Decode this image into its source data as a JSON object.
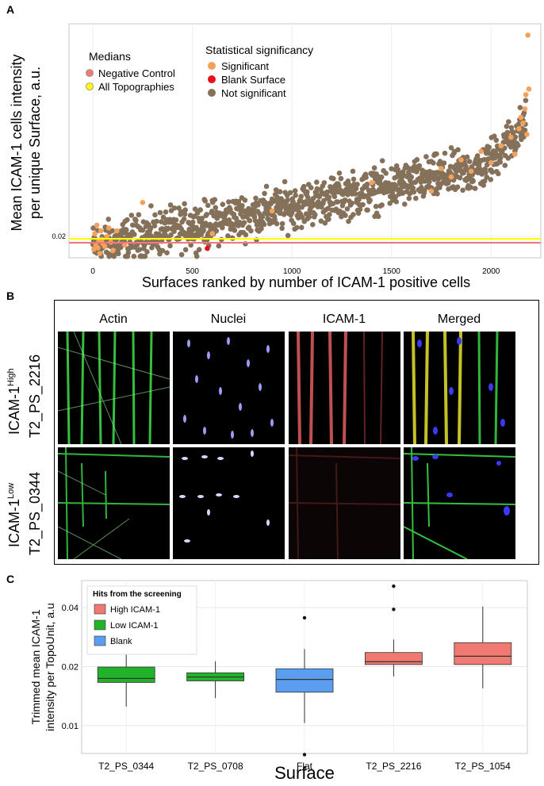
{
  "panel_a": {
    "letter": "A",
    "chart_data": {
      "type": "scatter",
      "title": "",
      "xlabel": "Surfaces ranked by number of ICAM-1 positive cells",
      "ylabel_line1": "Mean ICAM-1 cells intensity",
      "ylabel_line2": "per unique Surface, a.u.",
      "xlim": [
        -120,
        2250
      ],
      "ylim": [
        0.0125,
        0.095
      ],
      "x_ticks": [
        0,
        500,
        1000,
        1500,
        2000
      ],
      "x_tick_labels": [
        "0",
        "500",
        "1000",
        "1500",
        "2000"
      ],
      "y_ticks": [
        0.02
      ],
      "y_tick_labels": [
        "0.02"
      ],
      "grid": true,
      "legend_medians": {
        "title": "Medians",
        "entries": [
          {
            "label": "Negative Control",
            "color": "#f07a7a"
          },
          {
            "label": "All Topographies",
            "color": "#ffff00"
          }
        ]
      },
      "legend_significance": {
        "title": "Statistical significancy",
        "entries": [
          {
            "label": "Significant",
            "color": "#f4a15a"
          },
          {
            "label": "Blank Surface",
            "color": "#e8111a"
          },
          {
            "label": "Not significant",
            "color": "#85705a"
          }
        ]
      },
      "medians": [
        {
          "name": "Negative Control",
          "value": 0.0178,
          "color": "#f07a7a"
        },
        {
          "name": "All Topographies",
          "value": 0.0192,
          "color": "#ffff00"
        }
      ],
      "series": [
        {
          "name": "Not significant",
          "color": "#85705a",
          "n": 2176,
          "start": 0.0165,
          "end": 0.047,
          "tail_end": 0.06,
          "spread": 0.0095
        },
        {
          "name": "Significant",
          "color": "#f4a15a",
          "points_x": [
            5,
            10,
            15,
            20,
            25,
            30,
            35,
            40,
            45,
            50,
            60,
            70,
            80,
            90,
            100,
            120,
            160,
            250,
            600,
            900,
            1400,
            1700,
            1750,
            1800,
            1850,
            1900,
            1950,
            2000,
            2050,
            2100,
            2120,
            2140,
            2150,
            2160,
            2170,
            2175,
            2180,
            2185,
            2190
          ],
          "points_y": [
            0.0155,
            0.021,
            0.017,
            0.024,
            0.016,
            0.0185,
            0.014,
            0.022,
            0.019,
            0.0175,
            0.0165,
            0.02,
            0.023,
            0.018,
            0.015,
            0.022,
            0.017,
            0.032,
            0.021,
            0.029,
            0.039,
            0.036,
            0.044,
            0.041,
            0.047,
            0.043,
            0.05,
            0.046,
            0.052,
            0.055,
            0.049,
            0.058,
            0.062,
            0.06,
            0.065,
            0.07,
            0.056,
            0.091,
            0.072
          ]
        },
        {
          "name": "Blank Surface",
          "color": "#e8111a",
          "points_x": [
            575
          ],
          "points_y": [
            0.0158
          ]
        }
      ]
    }
  },
  "panel_b": {
    "letter": "B",
    "columns": [
      "Actin",
      "Nuclei",
      "ICAM-1",
      "Merged"
    ],
    "rows": [
      {
        "label_prefix": "ICAM-1",
        "label_sup": "High",
        "surface": "T2_PS_2216"
      },
      {
        "label_prefix": "ICAM-1",
        "label_sup": "Low",
        "surface": "T2_PS_0344"
      }
    ]
  },
  "panel_c": {
    "letter": "C",
    "chart_data": {
      "type": "box",
      "xlabel": "Surface",
      "ylabel_line1": "Trimmed mean ICAM-1",
      "ylabel_line2": "intensity per TopoUnit, a.u",
      "y_scale": "log",
      "ylim": [
        0.0072,
        0.055
      ],
      "y_ticks": [
        0.01,
        0.02,
        0.04
      ],
      "y_tick_labels": [
        "0.01",
        "0.02",
        "0.04"
      ],
      "legend": {
        "title": "Hits from the screening",
        "entries": [
          {
            "label": "High ICAM-1",
            "color": "#f07a72"
          },
          {
            "label": "Low ICAM-1",
            "color": "#22b32a"
          },
          {
            "label": "Blank",
            "color": "#5b9ef0"
          }
        ]
      },
      "categories": [
        "T2_PS_0344",
        "T2_PS_0708",
        "Flat",
        "T2_PS_2216",
        "T2_PS_1054"
      ],
      "boxes": [
        {
          "category": "T2_PS_0344",
          "group": "Low ICAM-1",
          "whisker_low": 0.0125,
          "q1": 0.0166,
          "median": 0.0174,
          "q3": 0.0199,
          "whisker_high": 0.0232,
          "outliers": []
        },
        {
          "category": "T2_PS_0708",
          "group": "Low ICAM-1",
          "whisker_low": 0.0138,
          "q1": 0.0169,
          "median": 0.0177,
          "q3": 0.0186,
          "whisker_high": 0.0213,
          "outliers": []
        },
        {
          "category": "Flat",
          "group": "Blank",
          "whisker_low": 0.0103,
          "q1": 0.0148,
          "median": 0.0172,
          "q3": 0.0195,
          "whisker_high": 0.0246,
          "outliers": [
            0.0071,
            0.0355
          ]
        },
        {
          "category": "T2_PS_2216",
          "group": "High ICAM-1",
          "whisker_low": 0.0178,
          "q1": 0.0205,
          "median": 0.0212,
          "q3": 0.0236,
          "whisker_high": 0.0275,
          "outliers": [
            0.0392,
            0.0515
          ]
        },
        {
          "category": "T2_PS_1054",
          "group": "High ICAM-1",
          "whisker_low": 0.0155,
          "q1": 0.0205,
          "median": 0.0226,
          "q3": 0.0265,
          "whisker_high": 0.0405,
          "outliers": []
        }
      ]
    }
  }
}
